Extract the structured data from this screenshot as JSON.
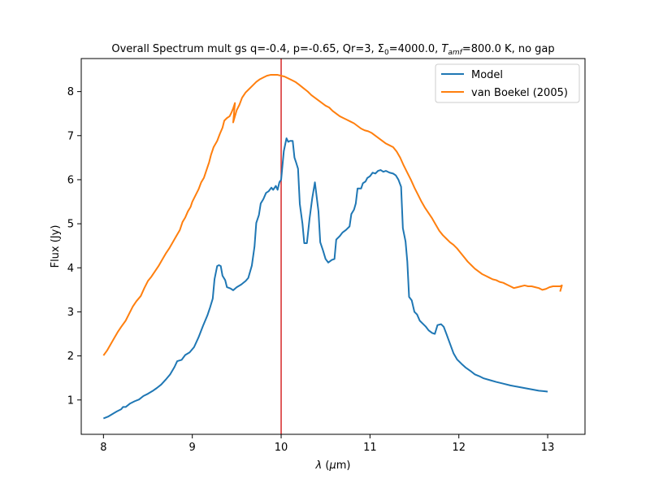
{
  "chart_data": {
    "type": "line",
    "title": {
      "prefix": "Overall Spectrum mult gs q=-0.4, p=-0.65, Qr=3, Σ",
      "sigma_sub": "0",
      "mid": "=4000.0, ",
      "t_main": "T",
      "t_sub": "amf",
      "suffix": "=800.0 K, no gap"
    },
    "xlabel": {
      "symbol": "λ",
      "unit_open": " (",
      "unit_mu": "μ",
      "unit_rest": "m)"
    },
    "ylabel": "Flux (Jy)",
    "xlim": [
      7.75,
      13.42
    ],
    "ylim": [
      0.22,
      8.75
    ],
    "xticks": [
      8,
      9,
      10,
      11,
      12,
      13
    ],
    "xtick_labels": [
      "8",
      "9",
      "10",
      "11",
      "12",
      "13"
    ],
    "yticks": [
      1,
      2,
      3,
      4,
      5,
      6,
      7,
      8
    ],
    "ytick_labels": [
      "1",
      "2",
      "3",
      "4",
      "5",
      "6",
      "7",
      "8"
    ],
    "grid": false,
    "legend_position": "top-right",
    "vertical_line": {
      "x": 10.0,
      "color": "#d62728"
    },
    "series": [
      {
        "name": "Model",
        "color": "#1f77b4",
        "points": [
          [
            8.0,
            0.58
          ],
          [
            8.05,
            0.62
          ],
          [
            8.1,
            0.68
          ],
          [
            8.15,
            0.74
          ],
          [
            8.2,
            0.79
          ],
          [
            8.22,
            0.84
          ],
          [
            8.25,
            0.84
          ],
          [
            8.3,
            0.92
          ],
          [
            8.35,
            0.97
          ],
          [
            8.4,
            1.01
          ],
          [
            8.45,
            1.09
          ],
          [
            8.5,
            1.14
          ],
          [
            8.55,
            1.2
          ],
          [
            8.6,
            1.27
          ],
          [
            8.65,
            1.35
          ],
          [
            8.7,
            1.46
          ],
          [
            8.75,
            1.58
          ],
          [
            8.8,
            1.75
          ],
          [
            8.83,
            1.88
          ],
          [
            8.88,
            1.91
          ],
          [
            8.92,
            2.02
          ],
          [
            8.97,
            2.08
          ],
          [
            9.02,
            2.2
          ],
          [
            9.07,
            2.42
          ],
          [
            9.12,
            2.68
          ],
          [
            9.17,
            2.92
          ],
          [
            9.2,
            3.1
          ],
          [
            9.23,
            3.3
          ],
          [
            9.25,
            3.74
          ],
          [
            9.28,
            4.04
          ],
          [
            9.3,
            4.06
          ],
          [
            9.32,
            4.04
          ],
          [
            9.34,
            3.82
          ],
          [
            9.37,
            3.72
          ],
          [
            9.39,
            3.56
          ],
          [
            9.43,
            3.53
          ],
          [
            9.46,
            3.49
          ],
          [
            9.5,
            3.56
          ],
          [
            9.55,
            3.62
          ],
          [
            9.6,
            3.7
          ],
          [
            9.63,
            3.77
          ],
          [
            9.67,
            4.05
          ],
          [
            9.7,
            4.48
          ],
          [
            9.72,
            5.02
          ],
          [
            9.75,
            5.2
          ],
          [
            9.77,
            5.46
          ],
          [
            9.8,
            5.56
          ],
          [
            9.83,
            5.7
          ],
          [
            9.86,
            5.74
          ],
          [
            9.89,
            5.82
          ],
          [
            9.91,
            5.77
          ],
          [
            9.94,
            5.86
          ],
          [
            9.96,
            5.77
          ],
          [
            9.98,
            5.94
          ],
          [
            10.0,
            6.0
          ],
          [
            10.03,
            6.65
          ],
          [
            10.06,
            6.94
          ],
          [
            10.08,
            6.86
          ],
          [
            10.1,
            6.88
          ],
          [
            10.13,
            6.88
          ],
          [
            10.15,
            6.5
          ],
          [
            10.17,
            6.38
          ],
          [
            10.19,
            6.25
          ],
          [
            10.21,
            5.45
          ],
          [
            10.24,
            5.0
          ],
          [
            10.26,
            4.56
          ],
          [
            10.29,
            4.56
          ],
          [
            10.32,
            5.12
          ],
          [
            10.35,
            5.58
          ],
          [
            10.38,
            5.94
          ],
          [
            10.42,
            5.28
          ],
          [
            10.44,
            4.58
          ],
          [
            10.47,
            4.4
          ],
          [
            10.5,
            4.2
          ],
          [
            10.53,
            4.12
          ],
          [
            10.57,
            4.18
          ],
          [
            10.6,
            4.2
          ],
          [
            10.62,
            4.64
          ],
          [
            10.66,
            4.72
          ],
          [
            10.69,
            4.8
          ],
          [
            10.73,
            4.86
          ],
          [
            10.77,
            4.94
          ],
          [
            10.79,
            5.22
          ],
          [
            10.82,
            5.32
          ],
          [
            10.84,
            5.46
          ],
          [
            10.86,
            5.8
          ],
          [
            10.9,
            5.8
          ],
          [
            10.92,
            5.92
          ],
          [
            10.95,
            5.96
          ],
          [
            10.97,
            6.04
          ],
          [
            11.0,
            6.08
          ],
          [
            11.03,
            6.16
          ],
          [
            11.06,
            6.14
          ],
          [
            11.09,
            6.2
          ],
          [
            11.12,
            6.22
          ],
          [
            11.15,
            6.18
          ],
          [
            11.18,
            6.2
          ],
          [
            11.22,
            6.16
          ],
          [
            11.26,
            6.14
          ],
          [
            11.29,
            6.1
          ],
          [
            11.32,
            6.0
          ],
          [
            11.35,
            5.84
          ],
          [
            11.37,
            4.9
          ],
          [
            11.4,
            4.6
          ],
          [
            11.42,
            4.14
          ],
          [
            11.44,
            3.34
          ],
          [
            11.47,
            3.26
          ],
          [
            11.5,
            3.0
          ],
          [
            11.53,
            2.94
          ],
          [
            11.56,
            2.8
          ],
          [
            11.6,
            2.72
          ],
          [
            11.63,
            2.66
          ],
          [
            11.66,
            2.58
          ],
          [
            11.7,
            2.52
          ],
          [
            11.73,
            2.5
          ],
          [
            11.76,
            2.7
          ],
          [
            11.8,
            2.72
          ],
          [
            11.83,
            2.66
          ],
          [
            11.86,
            2.5
          ],
          [
            11.9,
            2.28
          ],
          [
            11.94,
            2.06
          ],
          [
            11.98,
            1.92
          ],
          [
            12.03,
            1.82
          ],
          [
            12.08,
            1.73
          ],
          [
            12.13,
            1.66
          ],
          [
            12.18,
            1.58
          ],
          [
            12.23,
            1.54
          ],
          [
            12.28,
            1.49
          ],
          [
            12.35,
            1.45
          ],
          [
            12.42,
            1.41
          ],
          [
            12.5,
            1.37
          ],
          [
            12.58,
            1.33
          ],
          [
            12.66,
            1.3
          ],
          [
            12.74,
            1.27
          ],
          [
            12.82,
            1.24
          ],
          [
            12.9,
            1.21
          ],
          [
            12.95,
            1.2
          ],
          [
            13.0,
            1.19
          ]
        ]
      },
      {
        "name": "van Boekel (2005)",
        "color": "#ff7f0e",
        "points": [
          [
            8.0,
            2.01
          ],
          [
            8.04,
            2.12
          ],
          [
            8.08,
            2.26
          ],
          [
            8.12,
            2.4
          ],
          [
            8.16,
            2.54
          ],
          [
            8.2,
            2.66
          ],
          [
            8.25,
            2.8
          ],
          [
            8.29,
            2.96
          ],
          [
            8.33,
            3.12
          ],
          [
            8.37,
            3.24
          ],
          [
            8.42,
            3.36
          ],
          [
            8.46,
            3.54
          ],
          [
            8.5,
            3.7
          ],
          [
            8.54,
            3.8
          ],
          [
            8.58,
            3.92
          ],
          [
            8.62,
            4.04
          ],
          [
            8.66,
            4.18
          ],
          [
            8.7,
            4.32
          ],
          [
            8.74,
            4.44
          ],
          [
            8.78,
            4.58
          ],
          [
            8.82,
            4.72
          ],
          [
            8.86,
            4.86
          ],
          [
            8.89,
            5.04
          ],
          [
            8.92,
            5.14
          ],
          [
            8.95,
            5.28
          ],
          [
            8.98,
            5.38
          ],
          [
            9.0,
            5.5
          ],
          [
            9.04,
            5.66
          ],
          [
            9.07,
            5.78
          ],
          [
            9.1,
            5.94
          ],
          [
            9.13,
            6.04
          ],
          [
            9.16,
            6.22
          ],
          [
            9.19,
            6.4
          ],
          [
            9.21,
            6.56
          ],
          [
            9.24,
            6.74
          ],
          [
            9.28,
            6.88
          ],
          [
            9.31,
            7.04
          ],
          [
            9.34,
            7.18
          ],
          [
            9.36,
            7.34
          ],
          [
            9.39,
            7.4
          ],
          [
            9.42,
            7.44
          ],
          [
            9.44,
            7.52
          ],
          [
            9.46,
            7.62
          ],
          [
            9.48,
            7.74
          ],
          [
            9.46,
            7.3
          ],
          [
            9.5,
            7.58
          ],
          [
            9.53,
            7.7
          ],
          [
            9.56,
            7.86
          ],
          [
            9.6,
            7.98
          ],
          [
            9.64,
            8.06
          ],
          [
            9.68,
            8.14
          ],
          [
            9.72,
            8.22
          ],
          [
            9.76,
            8.28
          ],
          [
            9.8,
            8.32
          ],
          [
            9.84,
            8.36
          ],
          [
            9.88,
            8.38
          ],
          [
            9.92,
            8.38
          ],
          [
            9.96,
            8.38
          ],
          [
            10.0,
            8.36
          ],
          [
            10.04,
            8.34
          ],
          [
            10.08,
            8.3
          ],
          [
            10.12,
            8.26
          ],
          [
            10.16,
            8.22
          ],
          [
            10.2,
            8.16
          ],
          [
            10.25,
            8.08
          ],
          [
            10.3,
            8.0
          ],
          [
            10.34,
            7.92
          ],
          [
            10.38,
            7.86
          ],
          [
            10.42,
            7.8
          ],
          [
            10.46,
            7.74
          ],
          [
            10.5,
            7.68
          ],
          [
            10.54,
            7.64
          ],
          [
            10.58,
            7.56
          ],
          [
            10.62,
            7.5
          ],
          [
            10.66,
            7.44
          ],
          [
            10.7,
            7.4
          ],
          [
            10.74,
            7.36
          ],
          [
            10.78,
            7.32
          ],
          [
            10.82,
            7.28
          ],
          [
            10.86,
            7.22
          ],
          [
            10.9,
            7.16
          ],
          [
            10.94,
            7.12
          ],
          [
            10.98,
            7.1
          ],
          [
            11.02,
            7.06
          ],
          [
            11.06,
            7.0
          ],
          [
            11.1,
            6.94
          ],
          [
            11.14,
            6.88
          ],
          [
            11.18,
            6.82
          ],
          [
            11.22,
            6.78
          ],
          [
            11.26,
            6.74
          ],
          [
            11.3,
            6.64
          ],
          [
            11.34,
            6.5
          ],
          [
            11.38,
            6.32
          ],
          [
            11.42,
            6.16
          ],
          [
            11.46,
            6.0
          ],
          [
            11.5,
            5.82
          ],
          [
            11.54,
            5.66
          ],
          [
            11.58,
            5.5
          ],
          [
            11.62,
            5.36
          ],
          [
            11.66,
            5.24
          ],
          [
            11.7,
            5.12
          ],
          [
            11.74,
            4.98
          ],
          [
            11.78,
            4.84
          ],
          [
            11.82,
            4.74
          ],
          [
            11.86,
            4.66
          ],
          [
            11.9,
            4.58
          ],
          [
            11.94,
            4.52
          ],
          [
            11.98,
            4.44
          ],
          [
            12.02,
            4.34
          ],
          [
            12.06,
            4.24
          ],
          [
            12.1,
            4.14
          ],
          [
            12.14,
            4.06
          ],
          [
            12.18,
            3.98
          ],
          [
            12.22,
            3.92
          ],
          [
            12.26,
            3.86
          ],
          [
            12.3,
            3.82
          ],
          [
            12.34,
            3.78
          ],
          [
            12.38,
            3.74
          ],
          [
            12.42,
            3.72
          ],
          [
            12.46,
            3.68
          ],
          [
            12.5,
            3.66
          ],
          [
            12.54,
            3.62
          ],
          [
            12.58,
            3.58
          ],
          [
            12.62,
            3.54
          ],
          [
            12.66,
            3.56
          ],
          [
            12.7,
            3.58
          ],
          [
            12.74,
            3.6
          ],
          [
            12.78,
            3.58
          ],
          [
            12.82,
            3.58
          ],
          [
            12.86,
            3.56
          ],
          [
            12.9,
            3.54
          ],
          [
            12.94,
            3.5
          ],
          [
            12.98,
            3.52
          ],
          [
            13.02,
            3.56
          ],
          [
            13.06,
            3.58
          ],
          [
            13.1,
            3.58
          ],
          [
            13.14,
            3.58
          ],
          [
            13.16,
            3.6
          ],
          [
            13.14,
            3.46
          ]
        ]
      }
    ]
  }
}
